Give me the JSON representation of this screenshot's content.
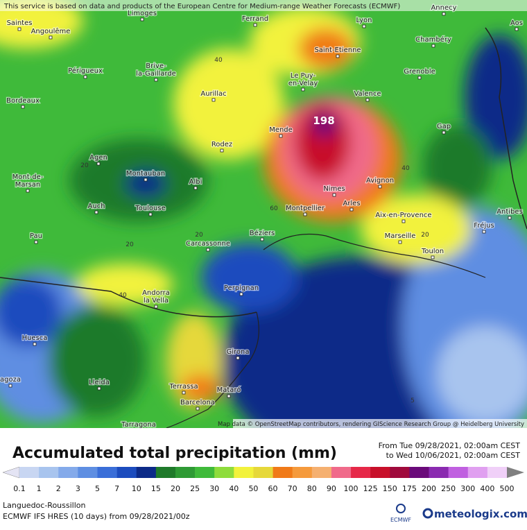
{
  "notice": "This service is based on data and products of the European Centre for Medium-range Weather Forecasts (ECMWF)",
  "attribution": "Map data © OpenStreetMap contributors, rendering GIScience Research Group @ Heidelberg University",
  "cities": [
    "Saintes",
    "Angoulême",
    "Limoges",
    "Ferrand",
    "Lyon",
    "Annecy",
    "Chambéry",
    "Aos",
    "Saint-Etienne",
    "Grenoble",
    "Périgueux",
    "Brive-\nla-Gaillarde",
    "Le Puy-\nen-Velay",
    "Valence",
    "Bordeaux",
    "Aurillac",
    "Mende",
    "Gap",
    "Rodez",
    "Agen",
    "Mont-de-\nMarsan",
    "Montauban",
    "Albi",
    "Nimes",
    "Avignon",
    "Auch",
    "Toulouse",
    "Montpellier",
    "Arles",
    "Aix-en-Provence",
    "Antibes",
    "Fréjus",
    "Pau",
    "Carcassonne",
    "Béziers",
    "Marseille",
    "Toulon",
    "Perpignan",
    "Andorra\nla Vella",
    "Huesca",
    "Girona",
    "Lleida",
    "agoza",
    "Terrassa",
    "Mataró",
    "Barcelona",
    "Tarragona"
  ],
  "contour_labels": [
    "40",
    "20",
    "40",
    "60",
    "20",
    "20",
    "20",
    "40",
    "5"
  ],
  "max_label": "198",
  "legend": {
    "title": "Accumulated total precipitation (mm)",
    "period_from": "From Tue 09/28/2021, 02:00am CEST",
    "period_to": "to Wed 10/06/2021, 02:00am CEST",
    "labels": [
      0.1,
      1,
      2,
      3,
      5,
      7,
      10,
      15,
      20,
      25,
      30,
      40,
      50,
      60,
      70,
      80,
      90,
      100,
      125,
      150,
      175,
      200,
      250,
      300,
      400,
      500
    ],
    "colors": [
      "#e4e4f4",
      "#c8d6f2",
      "#a8c4ee",
      "#84aaea",
      "#5e8ee2",
      "#3a6ed8",
      "#1c4cbe",
      "#0c2a88",
      "#1f7a2a",
      "#2e9a34",
      "#3fba3a",
      "#8edc3c",
      "#f2f23c",
      "#e6d83a",
      "#f07a18",
      "#f59a3c",
      "#f5b070",
      "#f06a8a",
      "#e62848",
      "#c8102a",
      "#a00a3c",
      "#6a0a7a",
      "#8a2ab0",
      "#c060e0",
      "#e0a0f0",
      "#f0d0f8",
      "#f4eef8",
      "#d0d0d0",
      "#808080"
    ]
  },
  "region": "Languedoc-Roussillon",
  "model": "ECMWF IFS HRES (10 days) from 09/28/2021/00z",
  "logo_ecmwf": "ECMWF",
  "logo_brand": "meteologix.com"
}
